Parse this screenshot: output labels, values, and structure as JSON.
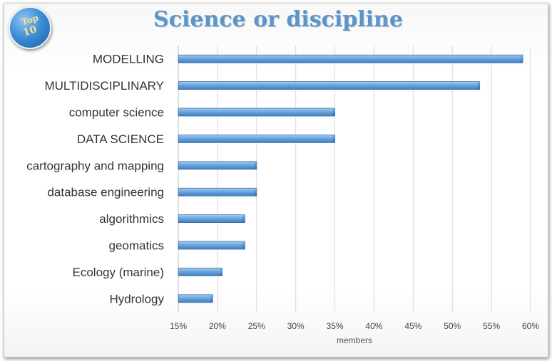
{
  "badge": {
    "line1": "Top",
    "line2": "10"
  },
  "chart_data": {
    "type": "bar",
    "orientation": "horizontal",
    "title": "Science or discipline",
    "xlabel": "members",
    "ylabel": "",
    "xlim": [
      0.15,
      0.6
    ],
    "x_ticks": [
      "15%",
      "20%",
      "25%",
      "30%",
      "35%",
      "40%",
      "45%",
      "50%",
      "55%",
      "60%"
    ],
    "grid": "vertical",
    "bar_color": "#5b9bd5",
    "categories": [
      "MODELLING",
      "MULTIDISCIPLINARY",
      "computer science",
      "DATA SCIENCE",
      "cartography and mapping",
      "database engineering",
      "algorithmics",
      "geomatics",
      "Ecology (marine)",
      "Hydrology"
    ],
    "values": [
      0.59,
      0.535,
      0.35,
      0.35,
      0.25,
      0.25,
      0.235,
      0.235,
      0.206,
      0.194
    ]
  }
}
